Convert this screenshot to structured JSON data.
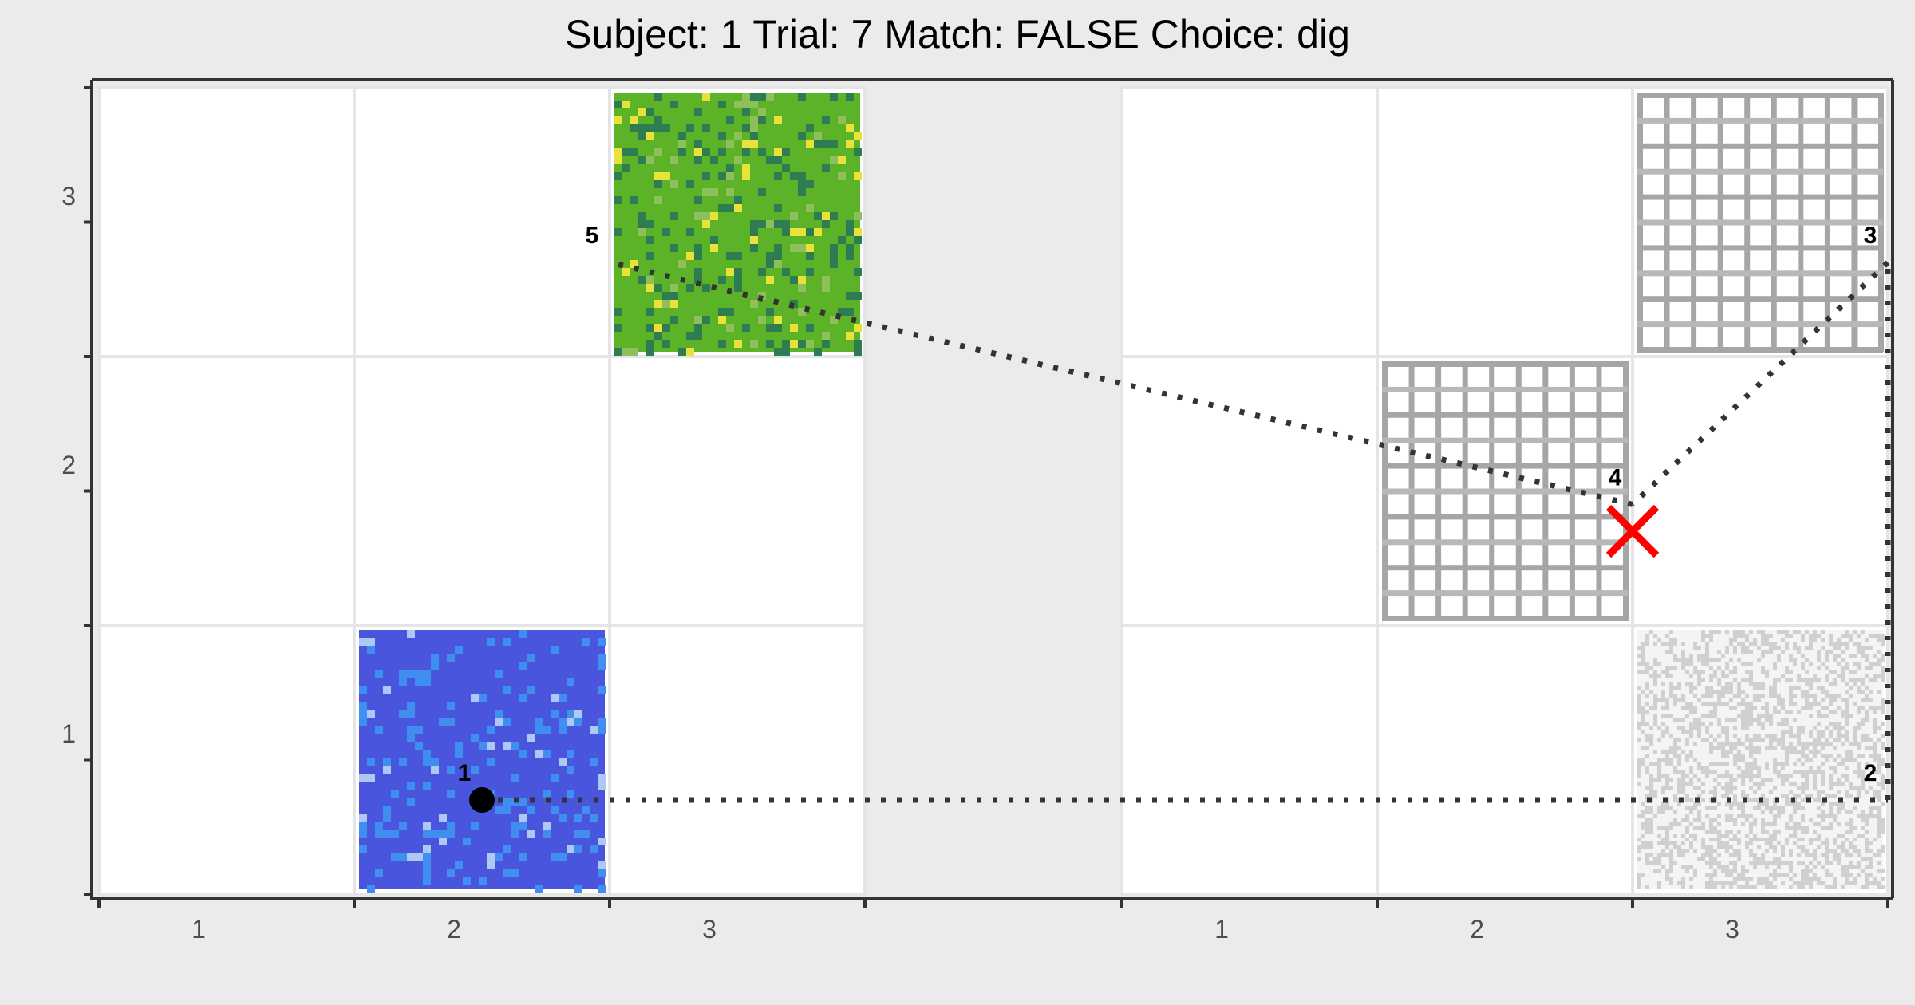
{
  "chart_data": {
    "type": "scatter",
    "title": "Subject:  1  Trial:  7  Match: FALSE  Choice: dig",
    "xlabel": "",
    "ylabel": "",
    "panels": [
      {
        "name": "",
        "x_ticks": [
          "1",
          "2",
          "3"
        ],
        "y_ticks": [
          "1",
          "2",
          "3"
        ]
      },
      {
        "name": "",
        "x_ticks": [
          "1",
          "2",
          "3"
        ],
        "y_ticks": [
          "1",
          "2",
          "3"
        ]
      }
    ],
    "grid": true,
    "tiles": [
      {
        "panel": 0,
        "col": 2,
        "row": 1,
        "texture": "blue-speckle",
        "colors": [
          "#4a55dd",
          "#3f8ef0",
          "#aec8f5"
        ]
      },
      {
        "panel": 0,
        "col": 3,
        "row": 3,
        "texture": "green-speckle",
        "colors": [
          "#5db327",
          "#2e7d52",
          "#e8e23a"
        ]
      },
      {
        "panel": 1,
        "col": 2,
        "row": 2,
        "texture": "grey-grid",
        "colors": [
          "#a6a6a6"
        ]
      },
      {
        "panel": 1,
        "col": 3,
        "row": 3,
        "texture": "grey-grid",
        "colors": [
          "#a6a6a6"
        ]
      },
      {
        "panel": 1,
        "col": 3,
        "row": 1,
        "texture": "grey-noise",
        "colors": [
          "#d0d0d0"
        ]
      }
    ],
    "path": [
      {
        "step": "1",
        "panel": 0,
        "x": 2.0,
        "y": 0.85
      },
      {
        "step": "2",
        "panel": 1,
        "x": 3.5,
        "y": 0.85
      },
      {
        "step": "3",
        "panel": 1,
        "x": 3.5,
        "y": 2.85
      },
      {
        "step": "4",
        "panel": 1,
        "x": 2.5,
        "y": 1.95
      },
      {
        "step": "5",
        "panel": 0,
        "x": 2.5,
        "y": 2.85
      }
    ],
    "start_marker": {
      "panel": 0,
      "x": 2.0,
      "y": 0.85
    },
    "end_marker": {
      "panel": 1,
      "x": 2.5,
      "y": 1.85,
      "label": "X",
      "color": "#ff0000"
    },
    "colors": {
      "background": "#ebebeb",
      "cell": "#ffffff",
      "cell_line": "#e5e5e5",
      "path": "#333333"
    }
  }
}
